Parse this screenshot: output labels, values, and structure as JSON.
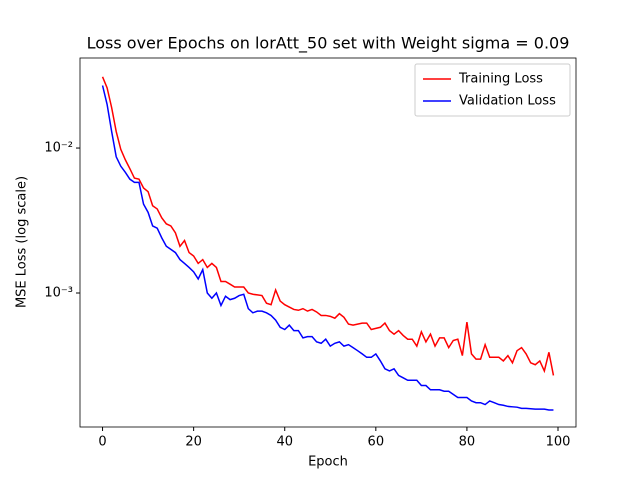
{
  "chart_data": {
    "type": "line",
    "title": "Loss over Epochs on lorAtt_50 set with Weight sigma = 0.09",
    "xlabel": "Epoch",
    "ylabel": "MSE Loss (log scale)",
    "yscale": "log",
    "legend": "upper right",
    "x": [
      0,
      1,
      2,
      3,
      4,
      5,
      6,
      7,
      8,
      9,
      10,
      11,
      12,
      13,
      14,
      15,
      16,
      17,
      18,
      19,
      20,
      21,
      22,
      23,
      24,
      25,
      26,
      27,
      28,
      29,
      30,
      31,
      32,
      33,
      34,
      35,
      36,
      37,
      38,
      39,
      40,
      41,
      42,
      43,
      44,
      45,
      46,
      47,
      48,
      49,
      50,
      51,
      52,
      53,
      54,
      55,
      56,
      57,
      58,
      59,
      60,
      61,
      62,
      63,
      64,
      65,
      66,
      67,
      68,
      69,
      70,
      71,
      72,
      73,
      74,
      75,
      76,
      77,
      78,
      79,
      80,
      81,
      82,
      83,
      84,
      85,
      86,
      87,
      88,
      89,
      90,
      91,
      92,
      93,
      94,
      95,
      96,
      97,
      98,
      99
    ],
    "series": [
      {
        "name": "Training Loss",
        "color": "#ff0000",
        "values": [
          0.031,
          0.026,
          0.019,
          0.013,
          0.0098,
          0.0083,
          0.0072,
          0.0062,
          0.0061,
          0.0053,
          0.005,
          0.004,
          0.0038,
          0.0033,
          0.003,
          0.0029,
          0.0026,
          0.0021,
          0.0023,
          0.0019,
          0.0018,
          0.0016,
          0.0017,
          0.0015,
          0.0016,
          0.0015,
          0.0012,
          0.0012,
          0.00115,
          0.0011,
          0.0011,
          0.0011,
          0.001,
          0.00098,
          0.00097,
          0.00096,
          0.00085,
          0.00083,
          0.00105,
          0.00088,
          0.00083,
          0.0008,
          0.00077,
          0.00076,
          0.00078,
          0.00075,
          0.00077,
          0.00074,
          0.0007,
          0.0007,
          0.00069,
          0.00067,
          0.00072,
          0.00068,
          0.00061,
          0.0006,
          0.00061,
          0.00062,
          0.00062,
          0.00056,
          0.00057,
          0.00058,
          0.00062,
          0.00055,
          0.00052,
          0.00055,
          0.00051,
          0.00048,
          0.00048,
          0.00043,
          0.00054,
          0.00046,
          0.00052,
          0.00043,
          0.00049,
          0.00049,
          0.00042,
          0.00047,
          0.00048,
          0.00037,
          0.00063,
          0.00038,
          0.00035,
          0.00035,
          0.00044,
          0.00036,
          0.00036,
          0.00036,
          0.00034,
          0.00037,
          0.00033,
          0.0004,
          0.00042,
          0.00038,
          0.00033,
          0.00032,
          0.00034,
          0.00029,
          0.00039,
          0.00027
        ]
      },
      {
        "name": "Validation Loss",
        "color": "#0000ff",
        "values": [
          0.027,
          0.02,
          0.013,
          0.0087,
          0.0075,
          0.0068,
          0.0061,
          0.0058,
          0.0058,
          0.0041,
          0.0036,
          0.0029,
          0.0028,
          0.0024,
          0.0021,
          0.002,
          0.0019,
          0.0017,
          0.0016,
          0.0015,
          0.0014,
          0.00125,
          0.00145,
          0.001,
          0.00092,
          0.001,
          0.00082,
          0.00095,
          0.0009,
          0.00092,
          0.00096,
          0.00098,
          0.00078,
          0.00073,
          0.00075,
          0.00075,
          0.00073,
          0.0007,
          0.00065,
          0.00058,
          0.00056,
          0.0006,
          0.00055,
          0.00055,
          0.00049,
          0.0005,
          0.0005,
          0.00046,
          0.00045,
          0.00048,
          0.00043,
          0.00045,
          0.00046,
          0.00043,
          0.00044,
          0.00042,
          0.0004,
          0.00038,
          0.00036,
          0.00036,
          0.00038,
          0.00034,
          0.0003,
          0.00029,
          0.0003,
          0.00027,
          0.00026,
          0.00025,
          0.00025,
          0.00025,
          0.00023,
          0.00023,
          0.000215,
          0.000215,
          0.000215,
          0.00021,
          0.00021,
          0.0002,
          0.00019,
          0.00019,
          0.00019,
          0.00018,
          0.000175,
          0.000175,
          0.00017,
          0.00018,
          0.000175,
          0.00017,
          0.000168,
          0.000165,
          0.000164,
          0.000163,
          0.00016,
          0.00016,
          0.000159,
          0.000158,
          0.000158,
          0.000158,
          0.000156,
          0.000156
        ]
      }
    ],
    "xlim": [
      -4.95,
      103.95
    ],
    "xticks": [
      0,
      20,
      40,
      60,
      80,
      100
    ],
    "ylim": [
      0.000119,
      0.0418
    ],
    "yticks": [
      {
        "value": 0.01,
        "label": "10⁻²"
      },
      {
        "value": 0.001,
        "label": "10⁻³"
      }
    ]
  }
}
